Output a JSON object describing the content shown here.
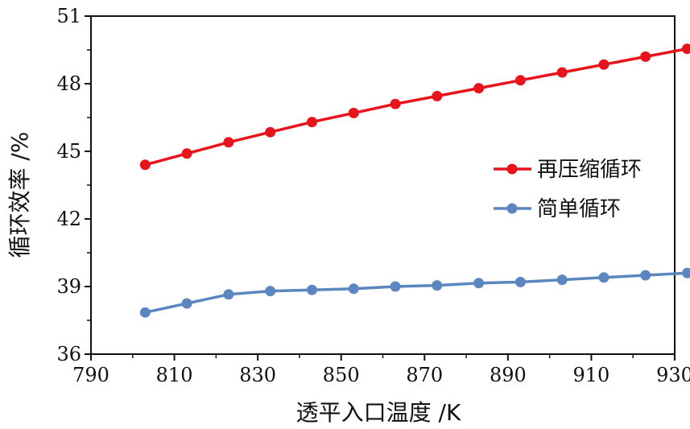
{
  "chart_data": {
    "type": "line",
    "xlabel": "透平入口温度 /K",
    "ylabel": "循环效率 /%",
    "xlim": [
      790,
      930
    ],
    "ylim": [
      36,
      51
    ],
    "x_ticks": [
      790,
      810,
      830,
      850,
      870,
      890,
      910,
      930
    ],
    "y_ticks": [
      36,
      39,
      42,
      45,
      48,
      51
    ],
    "x_tick_labels": [
      "790",
      "810",
      "830",
      "850",
      "870",
      "890",
      "910",
      "930"
    ],
    "y_tick_labels": [
      "36",
      "39",
      "42",
      "45",
      "48",
      "51"
    ],
    "grid": false,
    "legend_position": "right",
    "series": [
      {
        "name": "再压缩循环",
        "color": "#e8141c",
        "x": [
          803,
          813,
          823,
          833,
          843,
          853,
          863,
          873,
          883,
          893,
          903,
          913,
          923,
          933
        ],
        "y": [
          44.4,
          44.9,
          45.4,
          45.85,
          46.3,
          46.7,
          47.1,
          47.45,
          47.8,
          48.15,
          48.5,
          48.85,
          49.2,
          49.55
        ]
      },
      {
        "name": "简单循环",
        "color": "#5b86bf",
        "x": [
          803,
          813,
          823,
          833,
          843,
          853,
          863,
          873,
          883,
          893,
          903,
          913,
          923,
          933
        ],
        "y": [
          37.85,
          38.25,
          38.65,
          38.8,
          38.85,
          38.9,
          39.0,
          39.05,
          39.15,
          39.2,
          39.3,
          39.4,
          39.5,
          39.6
        ]
      }
    ]
  }
}
